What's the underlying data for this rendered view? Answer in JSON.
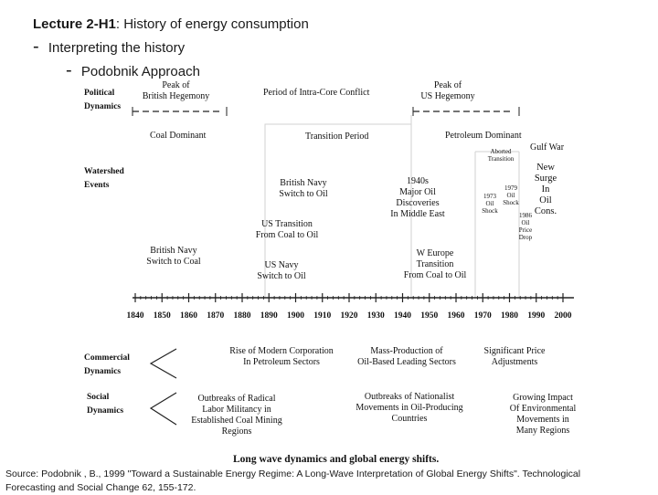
{
  "slide": {
    "title_bold": "Lecture 2-H1",
    "title_rest": ": History of energy consumption",
    "bullet1_mark": "-",
    "bullet1": "Interpreting the history",
    "bullet2_mark": "-",
    "bullet2": "Podobnik Approach"
  },
  "figure": {
    "categories": {
      "political": [
        "Political",
        "Dynamics"
      ],
      "watershed": [
        "Watershed",
        "Events"
      ],
      "commercial": [
        "Commercial",
        "Dynamics"
      ],
      "social": [
        "Social",
        "Dynamics"
      ]
    },
    "political": {
      "peak_british": [
        "Peak of",
        "British Hegemony"
      ],
      "intra_core": "Period of Intra-Core Conflict",
      "peak_us": [
        "Peak of",
        "US Hegemony"
      ]
    },
    "periods": {
      "coal": "Coal Dominant",
      "transition": "Transition Period",
      "petroleum": "Petroleum Dominant",
      "aborted": [
        "Aborted",
        "Transition"
      ],
      "gulf_war": "Gulf War"
    },
    "events": {
      "uk_navy_coal": [
        "British Navy",
        "Switch to Coal"
      ],
      "uk_navy_oil": [
        "British Navy",
        "Switch to Oil"
      ],
      "us_transition": [
        "US Transition",
        "From Coal to Oil"
      ],
      "us_navy": [
        "US Navy",
        "Switch to Oil"
      ],
      "discoveries": [
        "1940s",
        "Major Oil",
        "Discoveries",
        "In Middle East"
      ],
      "w_europe": [
        "W Europe",
        "Transition",
        "From Coal to Oil"
      ],
      "shock_1973": [
        "1973",
        "Oil",
        "Shock"
      ],
      "shock_1979": [
        "1979",
        "Oil",
        "Shock"
      ],
      "drop_1986": [
        "1986",
        "Oil",
        "Price",
        "Drop"
      ],
      "new_surge": [
        "New",
        "Surge",
        "In",
        "Oil",
        "Cons."
      ]
    },
    "axis": {
      "ticks": [
        "1840",
        "1850",
        "1860",
        "1870",
        "1880",
        "1890",
        "1900",
        "1910",
        "1920",
        "1930",
        "1940",
        "1950",
        "1960",
        "1970",
        "1980",
        "1990",
        "2000"
      ]
    },
    "commercial": {
      "c1": [
        "Rise of Modern Corporation",
        "In Petroleum Sectors"
      ],
      "c2": [
        "Mass-Production of",
        "Oil-Based Leading Sectors"
      ],
      "c3": [
        "Significant Price",
        "Adjustments"
      ]
    },
    "social": {
      "s1": [
        "Outbreaks of Radical",
        "Labor Militancy in",
        "Established Coal Mining",
        "Regions"
      ],
      "s2": [
        "Outbreaks of Nationalist",
        "Movements in Oil-Producing",
        "Countries"
      ],
      "s3": [
        "Growing Impact",
        "Of Environmental",
        "Movements in",
        "Many Regions"
      ]
    },
    "caption": "Long wave dynamics and global energy shifts."
  },
  "source": {
    "line1": "Source: Podobnik , B., 1999 \"Toward a Sustainable Energy Regime: A Long-Wave Interpretation of Global Energy Shifts\". Technological",
    "line2": "Forecasting and Social Change 62, 155-172."
  }
}
